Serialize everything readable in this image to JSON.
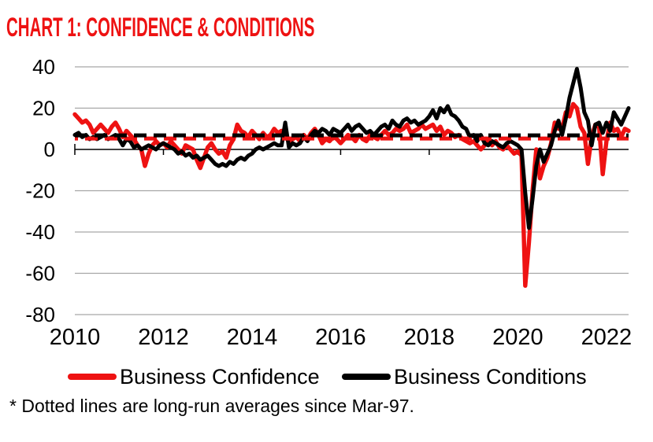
{
  "title": "CHART 1: CONFIDENCE & CONDITIONS",
  "footnote": "* Dotted lines are long-run averages since Mar-97.",
  "colors": {
    "title_red": "#ee1212",
    "series_red": "#ee1212",
    "series_black": "#000000",
    "grid": "#a6a6a6",
    "axis": "#000000"
  },
  "legend": {
    "items": [
      {
        "label": "Business Confidence",
        "color": "#ee1212"
      },
      {
        "label": "Business Conditions",
        "color": "#000000"
      }
    ]
  },
  "chart_data": {
    "type": "line",
    "title": "CHART 1: CONFIDENCE & CONDITIONS",
    "xlabel": "",
    "ylabel": "",
    "xlim": [
      2010,
      2022.5
    ],
    "ylim": [
      -80,
      40
    ],
    "grid": true,
    "legend_position": "bottom",
    "y_ticks": [
      40,
      20,
      0,
      -20,
      -40,
      -60,
      -80
    ],
    "x_ticks": [
      2010,
      2012,
      2014,
      2016,
      2018,
      2020,
      2022
    ],
    "x_start": 2010.0,
    "x_step": 0.0833333,
    "series": [
      {
        "name": "Business Confidence",
        "color": "#ee1212",
        "values": [
          17,
          15,
          13,
          14,
          12,
          8,
          10,
          12,
          10,
          8,
          11,
          13,
          10,
          6,
          9,
          7,
          5,
          2,
          0,
          -8,
          -2,
          2,
          4,
          2,
          3,
          1,
          4,
          2,
          0,
          -2,
          2,
          1,
          0,
          -5,
          -9,
          -4,
          1,
          3,
          0,
          -2,
          -1,
          -4,
          2,
          5,
          12,
          9,
          8,
          6,
          9,
          7,
          5,
          8,
          6,
          7,
          10,
          8,
          9,
          6,
          4,
          5,
          6,
          4,
          7,
          5,
          8,
          10,
          7,
          3,
          5,
          4,
          6,
          5,
          3,
          5,
          7,
          6,
          4,
          7,
          5,
          4,
          7,
          6,
          5,
          7,
          9,
          7,
          8,
          10,
          9,
          10,
          12,
          8,
          9,
          10,
          12,
          10,
          11,
          12,
          9,
          11,
          7,
          9,
          8,
          6,
          7,
          5,
          4,
          3,
          4,
          2,
          0,
          2,
          5,
          2,
          4,
          1,
          0,
          2,
          0,
          -2,
          -1,
          -3,
          -66,
          -45,
          -20,
          0,
          -14,
          -8,
          -4,
          3,
          13,
          10,
          10,
          18,
          16,
          22,
          20,
          11,
          8,
          -7,
          6,
          12,
          11,
          -12,
          4,
          13,
          9,
          10,
          6,
          10,
          9
        ]
      },
      {
        "name": "Business Conditions",
        "color": "#000000",
        "values": [
          7,
          8,
          6,
          7,
          5,
          6,
          5,
          6,
          7,
          5,
          6,
          7,
          5,
          2,
          5,
          4,
          1,
          2,
          0,
          1,
          2,
          1,
          0,
          2,
          3,
          2,
          1,
          0,
          -2,
          -1,
          -3,
          -2,
          -4,
          -3,
          -5,
          -4,
          -3,
          -5,
          -7,
          -8,
          -7,
          -8,
          -6,
          -7,
          -5,
          -4,
          -5,
          -3,
          -2,
          0,
          1,
          0,
          1,
          2,
          3,
          2,
          2,
          13,
          1,
          3,
          2,
          3,
          6,
          4,
          7,
          9,
          8,
          10,
          9,
          7,
          10,
          9,
          8,
          10,
          12,
          9,
          11,
          12,
          10,
          8,
          9,
          7,
          9,
          11,
          12,
          10,
          14,
          12,
          11,
          14,
          15,
          13,
          14,
          12,
          13,
          14,
          16,
          19,
          15,
          20,
          18,
          21,
          17,
          16,
          14,
          11,
          10,
          6,
          7,
          4,
          7,
          3,
          2,
          4,
          3,
          2,
          1,
          3,
          4,
          3,
          2,
          0,
          -21,
          -38,
          -24,
          -8,
          0,
          -6,
          -2,
          2,
          9,
          14,
          7,
          15,
          25,
          32,
          39,
          30,
          18,
          14,
          2,
          12,
          13,
          8,
          13,
          9,
          18,
          15,
          12,
          16,
          20
        ]
      }
    ],
    "long_run_averages": [
      {
        "name": "Business Confidence long-run average",
        "value": 5.3,
        "color": "#ee1212"
      },
      {
        "name": "Business Conditions long-run average",
        "value": 6.8,
        "color": "#000000"
      }
    ],
    "annotations": [
      "* Dotted lines are long-run averages since Mar-97."
    ]
  }
}
